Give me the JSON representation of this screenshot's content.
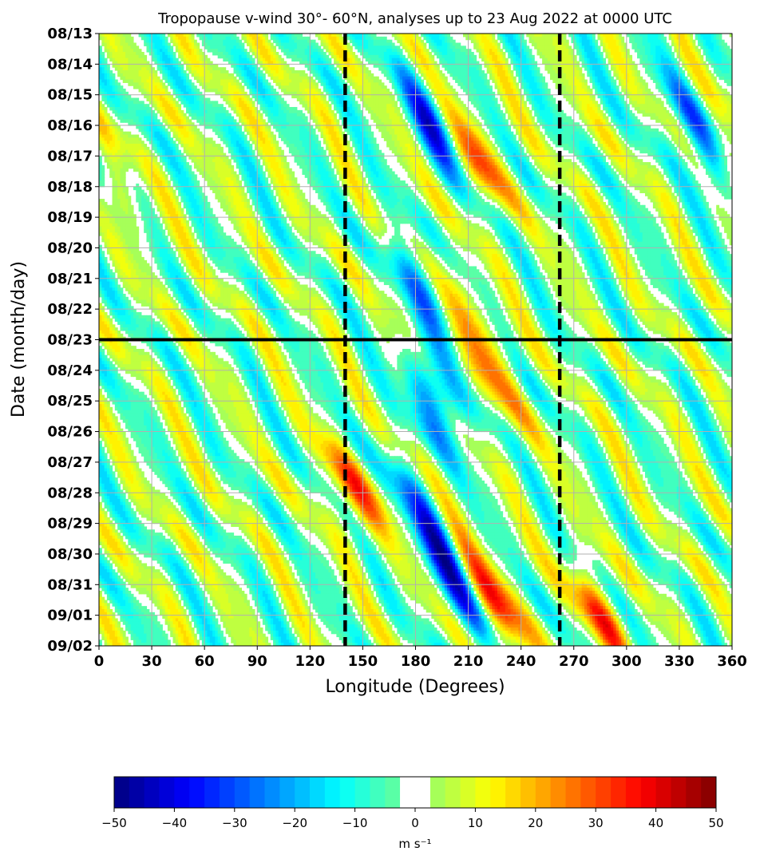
{
  "chart_data": {
    "type": "heatmap",
    "title": "Tropopause v-wind 30°- 60°N, analyses up to 23 Aug 2022 at 0000 UTC",
    "xlabel": "Longitude (Degrees)",
    "ylabel": "Date (month/day)",
    "xlim": [
      0,
      360
    ],
    "x_ticks": [
      "0",
      "30",
      "60",
      "90",
      "120",
      "150",
      "180",
      "210",
      "240",
      "270",
      "300",
      "330",
      "360"
    ],
    "y_ticks": [
      "08/13",
      "08/14",
      "08/15",
      "08/16",
      "08/17",
      "08/18",
      "08/19",
      "08/20",
      "08/21",
      "08/22",
      "08/23",
      "08/24",
      "08/25",
      "08/26",
      "08/27",
      "08/28",
      "08/29",
      "08/30",
      "08/31",
      "09/01",
      "09/02"
    ],
    "grid": true,
    "reference_lines": {
      "analysis_date": "08/23",
      "dashed_longitudes": [
        140,
        262
      ]
    },
    "colorbar": {
      "min": -50,
      "max": 50,
      "step": 2.5,
      "blank_range": [
        -2.5,
        2.5
      ],
      "ticks": [
        "−50",
        "−40",
        "−30",
        "−20",
        "−10",
        "0",
        "10",
        "20",
        "30",
        "40",
        "50"
      ],
      "label": "m s⁻¹"
    },
    "features": [
      {
        "sign": "negative",
        "lon_start": 185,
        "lon_end": 195,
        "date_start": "08/15",
        "date_end": "08/17",
        "peak": -40
      },
      {
        "sign": "positive",
        "lon_start": 210,
        "lon_end": 220,
        "date_start": "08/16",
        "date_end": "08/18",
        "peak": 35
      },
      {
        "sign": "negative",
        "lon_start": 180,
        "lon_end": 195,
        "date_start": "08/20",
        "date_end": "08/23",
        "peak": -35
      },
      {
        "sign": "positive",
        "lon_start": 210,
        "lon_end": 220,
        "date_start": "08/21",
        "date_end": "08/25",
        "peak": 35
      },
      {
        "sign": "negative",
        "lon_start": 185,
        "lon_end": 195,
        "date_start": "08/24",
        "date_end": "08/26",
        "peak": -40
      },
      {
        "sign": "positive",
        "lon_start": 140,
        "lon_end": 150,
        "date_start": "08/27",
        "date_end": "08/29",
        "peak": 35
      },
      {
        "sign": "negative",
        "lon_start": 180,
        "lon_end": 210,
        "date_start": "08/28",
        "date_end": "09/01",
        "peak": -45
      },
      {
        "sign": "positive",
        "lon_start": 220,
        "lon_end": 230,
        "date_start": "08/30",
        "date_end": "09/02",
        "peak": 40
      },
      {
        "sign": "positive",
        "lon_start": 280,
        "lon_end": 290,
        "date_start": "08/31",
        "date_end": "09/02",
        "peak": 35
      },
      {
        "sign": "negative",
        "lon_start": 335,
        "lon_end": 350,
        "date_start": "08/15",
        "date_end": "08/18",
        "peak": -35
      },
      {
        "sign": "positive",
        "lon_start": 0,
        "lon_end": 10,
        "date_start": "08/16",
        "date_end": "08/19",
        "peak": 25
      }
    ]
  }
}
